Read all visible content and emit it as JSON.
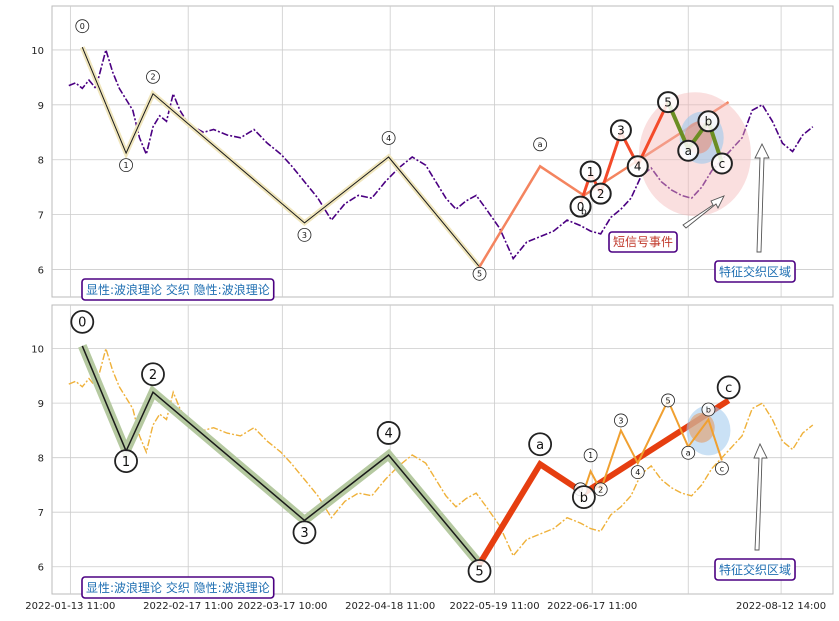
{
  "colors": {
    "price_top": "#4b0082",
    "price_bottom": "#efb13a",
    "wave_line": "#1a1a1a",
    "wave_halo_top": "#f0e6bd",
    "wave_halo_bottom": "#b5c9a0",
    "abc_top": "#f4845f",
    "abc_bottom": "#e63e10",
    "sub_top": "#f44a2a",
    "sub_abc_top": "#6b8e23",
    "sub_bottom": "#f0a030",
    "label_text": "#1f6fb2",
    "label_border": "#4b0082",
    "signal_text": "#c0392b",
    "grid": "#cccccc"
  },
  "chart_data": [
    {
      "type": "line",
      "panel": "top",
      "ylim": [
        5.5,
        10.8
      ],
      "yticks": [
        6,
        7,
        8,
        9,
        10
      ],
      "grid": true,
      "series": [
        {
          "x": [
            "2022-01-13",
            "2022-01-15",
            "2022-01-17",
            "2022-01-19",
            "2022-01-21",
            "2022-01-24",
            "2022-01-26",
            "2022-01-28",
            "2022-02-01",
            "2022-02-03",
            "2022-02-05",
            "2022-02-07",
            "2022-02-09",
            "2022-02-11",
            "2022-02-13",
            "2022-02-15",
            "2022-02-17",
            "2022-02-19",
            "2022-02-22",
            "2022-02-25",
            "2022-03-01",
            "2022-03-05",
            "2022-03-09",
            "2022-03-13",
            "2022-03-17",
            "2022-03-20",
            "2022-03-24",
            "2022-03-28",
            "2022-04-01",
            "2022-04-05",
            "2022-04-09",
            "2022-04-13",
            "2022-04-17",
            "2022-04-21",
            "2022-04-25",
            "2022-04-29",
            "2022-05-02",
            "2022-05-05",
            "2022-05-08",
            "2022-05-11",
            "2022-05-14",
            "2022-05-17",
            "2022-05-21",
            "2022-05-25",
            "2022-05-29",
            "2022-06-02",
            "2022-06-06",
            "2022-06-10",
            "2022-06-14",
            "2022-06-17",
            "2022-06-20",
            "2022-06-23",
            "2022-06-26",
            "2022-06-29",
            "2022-07-02",
            "2022-07-05",
            "2022-07-08",
            "2022-07-11",
            "2022-07-14",
            "2022-07-17",
            "2022-07-20",
            "2022-07-23",
            "2022-07-26",
            "2022-07-29",
            "2022-08-01",
            "2022-08-04",
            "2022-08-07",
            "2022-08-10",
            "2022-08-13",
            "2022-08-16",
            "2022-08-19",
            "2022-08-22"
          ],
          "values": [
            9.35,
            9.4,
            9.3,
            9.45,
            9.3,
            10.0,
            9.6,
            9.3,
            8.9,
            8.4,
            8.1,
            8.6,
            8.8,
            8.7,
            9.2,
            8.9,
            8.7,
            8.6,
            8.5,
            8.55,
            8.45,
            8.4,
            8.55,
            8.3,
            8.1,
            7.9,
            7.6,
            7.3,
            6.9,
            7.2,
            7.35,
            7.3,
            7.6,
            7.85,
            8.05,
            7.9,
            7.6,
            7.3,
            7.1,
            7.25,
            7.35,
            7.1,
            6.75,
            6.2,
            6.5,
            6.6,
            6.7,
            6.9,
            6.8,
            6.7,
            6.65,
            6.95,
            7.1,
            7.3,
            7.7,
            7.85,
            7.6,
            7.45,
            7.35,
            7.3,
            7.5,
            7.8,
            8.0,
            8.2,
            8.4,
            8.9,
            9.0,
            8.7,
            8.3,
            8.15,
            8.45,
            8.6
          ]
        }
      ]
    },
    {
      "type": "line",
      "panel": "bottom",
      "xlim": [
        "2022-01-13 11:00",
        "2022-08-26"
      ],
      "xticks": [
        "2022-01-13 11:00",
        "2022-02-17 11:00",
        "2022-03-17 10:00",
        "2022-04-18 11:00",
        "2022-05-19 11:00",
        "2022-06-17 11:00",
        "2022-07-16",
        "2022-08-12 14:00"
      ],
      "xtick_labels": [
        "2022-01-13 11:00",
        "2022-02-17 11:00",
        "2022-03-17 10:00",
        "2022-04-18 11:00",
        "2022-05-19 11:00",
        "2022-06-17 11:00",
        "",
        "2022-08-12 14:00"
      ],
      "ylim": [
        5.5,
        10.8
      ],
      "yticks": [
        6,
        7,
        8,
        9,
        10
      ],
      "grid": true,
      "series": [
        {
          "x": "same as top panel",
          "values": "same as top panel"
        }
      ]
    }
  ],
  "waves": {
    "main_points": [
      {
        "label": "0",
        "x": "2022-01-17",
        "y": 10.05
      },
      {
        "label": "1",
        "x": "2022-01-30",
        "y": 8.12
      },
      {
        "label": "2",
        "x": "2022-02-07",
        "y": 9.2
      },
      {
        "label": "3",
        "x": "2022-03-24",
        "y": 6.85
      },
      {
        "label": "4",
        "x": "2022-04-18",
        "y": 8.05
      },
      {
        "label": "5",
        "x": "2022-05-15",
        "y": 6.05
      }
    ],
    "abc_points": [
      {
        "label": "a",
        "x": "2022-06-02",
        "y": 7.88
      },
      {
        "label": "b",
        "x": "2022-06-15",
        "y": 7.35
      },
      {
        "label": "c",
        "x": "2022-07-28",
        "y": 9.05
      }
    ],
    "sub_points": [
      {
        "label": "0",
        "x": "2022-06-14",
        "y": 7.2
      },
      {
        "label": "1",
        "x": "2022-06-17",
        "y": 7.75
      },
      {
        "label": "2",
        "x": "2022-06-20",
        "y": 7.4
      },
      {
        "label": "3",
        "x": "2022-06-26",
        "y": 8.5
      },
      {
        "label": "4",
        "x": "2022-07-01",
        "y": 7.9
      },
      {
        "label": "5",
        "x": "2022-07-10",
        "y": 9.05
      }
    ],
    "sub_abc_points": [
      {
        "label": "a",
        "x": "2022-07-16",
        "y": 8.2
      },
      {
        "label": "b",
        "x": "2022-07-22",
        "y": 8.7
      },
      {
        "label": "c",
        "x": "2022-07-26",
        "y": 7.95
      }
    ]
  },
  "texts": {
    "top_label": "显性:波浪理论 交织 隐性:波浪理论",
    "bottom_label": "显性:波浪理论 交织 隐性:波浪理论",
    "signal_label": "短信号事件",
    "zone_label_top": "特征交织区域",
    "zone_label_bottom": "特征交织区域",
    "b_small": "b"
  }
}
